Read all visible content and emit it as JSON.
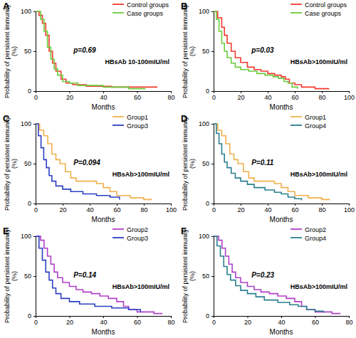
{
  "chart_data": [
    {
      "type": "step",
      "title": "A",
      "x_label": "Months",
      "y_label": "Probability of persistent immunity (%)",
      "annotations": [
        "p=0.69",
        "HBsAb 10-100mIU/ml"
      ],
      "legend": "upper right",
      "xlim": [
        0,
        80
      ],
      "xticks": [
        0,
        20,
        40,
        60,
        80
      ],
      "ylim": [
        0,
        100
      ],
      "yticks": [
        0,
        50,
        100
      ],
      "series": [
        {
          "name": "Control groups",
          "color": "#f03a2e",
          "x": [
            0,
            2,
            4,
            6,
            8,
            10,
            12,
            15,
            18,
            22,
            30,
            45,
            60,
            72
          ],
          "values": [
            100,
            95,
            85,
            70,
            50,
            35,
            25,
            15,
            10,
            8,
            6,
            5,
            5,
            5
          ]
        },
        {
          "name": "Case groups",
          "color": "#6acb3c",
          "x": [
            0,
            3,
            5,
            7,
            9,
            11,
            13,
            16,
            20,
            25,
            40,
            55,
            65
          ],
          "values": [
            100,
            90,
            75,
            55,
            40,
            28,
            20,
            12,
            10,
            7,
            5,
            3,
            3
          ]
        }
      ]
    },
    {
      "type": "step",
      "title": "B",
      "x_label": "Months",
      "y_label": "Probability of persistent immunity (%)",
      "annotations": [
        "p=0.03",
        "HBsAb>100mIU/ml"
      ],
      "legend": "upper right",
      "xlim": [
        0,
        100
      ],
      "xticks": [
        0,
        20,
        40,
        60,
        80,
        100
      ],
      "ylim": [
        0,
        100
      ],
      "yticks": [
        0,
        50,
        100
      ],
      "series": [
        {
          "name": "Control groups",
          "color": "#f03a2e",
          "x": [
            0,
            3,
            6,
            8,
            10,
            13,
            16,
            20,
            25,
            30,
            35,
            40,
            45,
            50,
            53,
            56,
            60,
            65,
            75,
            85
          ],
          "values": [
            100,
            92,
            80,
            70,
            60,
            50,
            42,
            36,
            30,
            27,
            25,
            22,
            20,
            18,
            15,
            10,
            8,
            5,
            3,
            2
          ]
        },
        {
          "name": "Case groups",
          "color": "#6acb3c",
          "x": [
            0,
            2,
            4,
            6,
            8,
            10,
            13,
            16,
            20,
            26,
            32,
            38,
            44,
            48,
            52,
            55,
            58,
            62
          ],
          "values": [
            100,
            90,
            75,
            60,
            50,
            42,
            35,
            30,
            27,
            25,
            22,
            20,
            18,
            16,
            12,
            10,
            5,
            3
          ]
        }
      ]
    },
    {
      "type": "step",
      "title": "C",
      "x_label": "Months",
      "y_label": "Probability of persistent immunity (%)",
      "annotations": [
        "P=0.094",
        "HBsAb>100mIU/ml"
      ],
      "legend": "upper right",
      "xlim": [
        0,
        100
      ],
      "xticks": [
        0,
        20,
        40,
        60,
        80,
        100
      ],
      "ylim": [
        0,
        100
      ],
      "yticks": [
        0,
        50,
        100
      ],
      "series": [
        {
          "name": "Group1",
          "color": "#f0b04e",
          "x": [
            0,
            3,
            6,
            9,
            12,
            15,
            18,
            22,
            26,
            30,
            40,
            45,
            50,
            55,
            60,
            70,
            80,
            86
          ],
          "values": [
            100,
            92,
            85,
            75,
            62,
            55,
            50,
            40,
            32,
            28,
            28,
            25,
            20,
            15,
            10,
            7,
            5,
            5
          ]
        },
        {
          "name": "Group3",
          "color": "#2b3fc2",
          "x": [
            0,
            2,
            4,
            6,
            8,
            10,
            12,
            15,
            20,
            26,
            35,
            45,
            55,
            62
          ],
          "values": [
            100,
            85,
            70,
            55,
            45,
            35,
            28,
            22,
            18,
            15,
            12,
            10,
            8,
            5
          ]
        }
      ]
    },
    {
      "type": "step",
      "title": "D",
      "x_label": "Months",
      "y_label": "Probability of persistent immunity (%)",
      "annotations": [
        "P=0.11",
        "HBsAb>100mIU/ml"
      ],
      "legend": "upper right",
      "xlim": [
        0,
        100
      ],
      "xticks": [
        0,
        20,
        40,
        60,
        80,
        100
      ],
      "ylim": [
        0,
        100
      ],
      "yticks": [
        0,
        50,
        100
      ],
      "series": [
        {
          "name": "Group1",
          "color": "#f0b04e",
          "x": [
            0,
            3,
            6,
            9,
            12,
            15,
            18,
            22,
            26,
            30,
            40,
            45,
            50,
            55,
            60,
            70,
            80,
            86
          ],
          "values": [
            100,
            92,
            85,
            75,
            62,
            55,
            50,
            40,
            32,
            28,
            28,
            25,
            20,
            15,
            10,
            7,
            5,
            5
          ]
        },
        {
          "name": "Group4",
          "color": "#2a7f8f",
          "x": [
            0,
            2,
            4,
            6,
            8,
            10,
            13,
            16,
            20,
            25,
            30,
            38,
            45,
            50,
            55,
            60,
            65
          ],
          "values": [
            100,
            88,
            75,
            62,
            52,
            45,
            38,
            32,
            28,
            24,
            20,
            17,
            14,
            12,
            8,
            6,
            4
          ]
        }
      ]
    },
    {
      "type": "step",
      "title": "E",
      "x_label": "Months",
      "y_label": "Probability of persistent immunity (%)",
      "annotations": [
        "P=0.14",
        "HBsAb>100mIU/ml"
      ],
      "legend": "upper right",
      "xlim": [
        0,
        80
      ],
      "xticks": [
        0,
        20,
        40,
        60,
        80
      ],
      "ylim": [
        0,
        100
      ],
      "yticks": [
        0,
        50,
        100
      ],
      "series": [
        {
          "name": "Group2",
          "color": "#b040c8",
          "x": [
            0,
            3,
            5,
            7,
            9,
            11,
            13,
            16,
            20,
            24,
            28,
            33,
            38,
            43,
            48,
            52,
            55,
            60,
            70,
            75
          ],
          "values": [
            100,
            95,
            85,
            75,
            65,
            55,
            48,
            42,
            37,
            33,
            30,
            28,
            25,
            22,
            18,
            12,
            8,
            5,
            3,
            3
          ]
        },
        {
          "name": "Group3",
          "color": "#2b3fc2",
          "x": [
            0,
            2,
            4,
            6,
            8,
            10,
            12,
            15,
            20,
            26,
            35,
            45,
            55,
            62
          ],
          "values": [
            100,
            85,
            70,
            55,
            45,
            35,
            28,
            22,
            18,
            15,
            12,
            10,
            8,
            5
          ]
        }
      ]
    },
    {
      "type": "step",
      "title": "F",
      "x_label": "Months",
      "y_label": "Probability of persistent immunity (%)",
      "annotations": [
        "P=0.23",
        "HBsAb>100mIU/ml"
      ],
      "legend": "upper right",
      "xlim": [
        0,
        80
      ],
      "xticks": [
        0,
        20,
        40,
        60,
        80
      ],
      "ylim": [
        0,
        100
      ],
      "yticks": [
        0,
        50,
        100
      ],
      "series": [
        {
          "name": "Group2",
          "color": "#b040c8",
          "x": [
            0,
            3,
            5,
            7,
            9,
            11,
            13,
            16,
            20,
            24,
            28,
            33,
            38,
            43,
            48,
            52,
            55,
            60,
            70,
            75
          ],
          "values": [
            100,
            95,
            85,
            75,
            65,
            55,
            48,
            42,
            37,
            33,
            30,
            28,
            25,
            22,
            18,
            12,
            8,
            5,
            3,
            3
          ]
        },
        {
          "name": "Group4",
          "color": "#2a7f8f",
          "x": [
            0,
            2,
            4,
            6,
            8,
            10,
            13,
            16,
            20,
            25,
            30,
            38,
            45,
            50,
            55,
            60,
            65
          ],
          "values": [
            100,
            88,
            75,
            62,
            52,
            45,
            38,
            32,
            28,
            24,
            20,
            17,
            14,
            12,
            8,
            6,
            4
          ]
        }
      ]
    }
  ]
}
